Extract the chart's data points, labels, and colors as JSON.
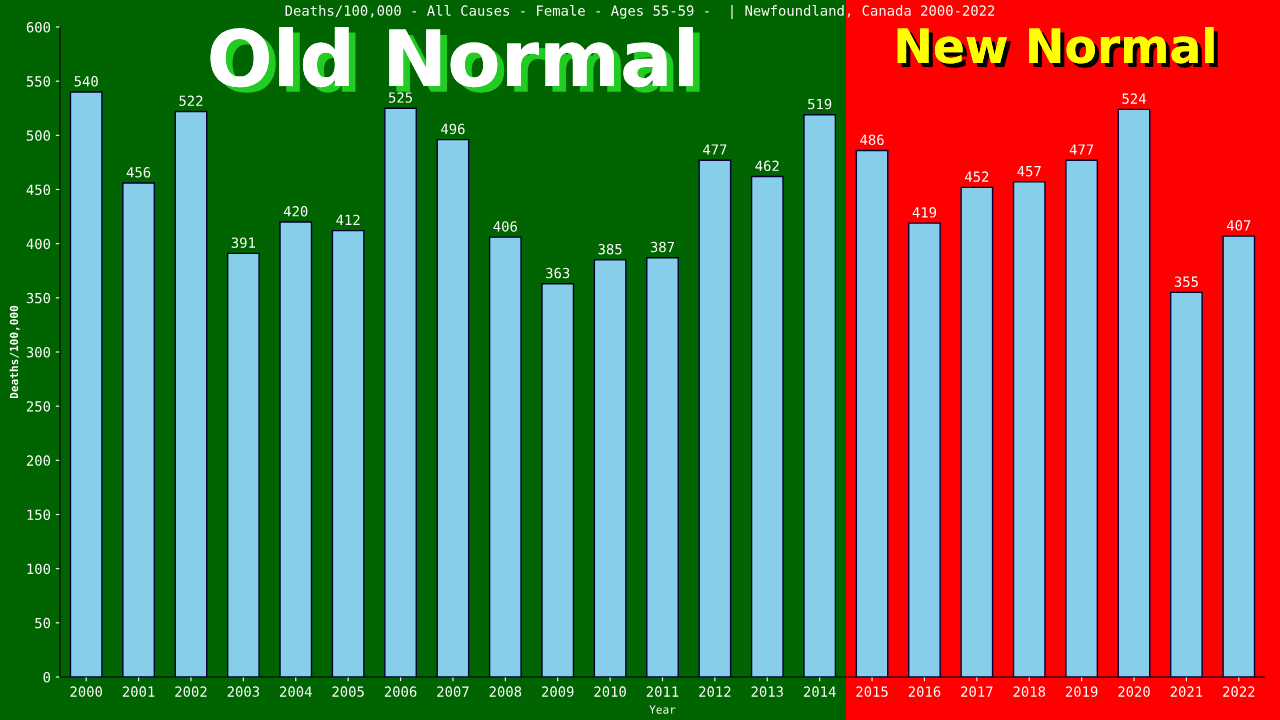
{
  "chart_data": {
    "type": "bar",
    "title": "Deaths/100,000 - All Causes - Female - Ages 55-59 -  | Newfoundland, Canada 2000-2022",
    "xlabel": "Year",
    "ylabel": "Deaths/100,000",
    "categories": [
      "2000",
      "2001",
      "2002",
      "2003",
      "2004",
      "2005",
      "2006",
      "2007",
      "2008",
      "2009",
      "2010",
      "2011",
      "2012",
      "2013",
      "2014",
      "2015",
      "2016",
      "2017",
      "2018",
      "2019",
      "2020",
      "2021",
      "2022"
    ],
    "values": [
      540,
      456,
      522,
      391,
      420,
      412,
      525,
      496,
      406,
      363,
      385,
      387,
      477,
      462,
      519,
      486,
      419,
      452,
      457,
      477,
      524,
      355,
      407
    ],
    "color": "#87ceeb",
    "data_labels": true,
    "ylim": [
      0,
      600
    ],
    "yticks": [
      0,
      50,
      100,
      150,
      200,
      250,
      300,
      350,
      400,
      450,
      500,
      550,
      600
    ],
    "bands": [
      {
        "axis": "x",
        "from": "2000",
        "to": "2014",
        "label": "Old Normal",
        "color": "#006400"
      },
      {
        "axis": "x",
        "from": "2015",
        "to": "2022",
        "label": "New Normal",
        "color": "#ff0000"
      }
    ],
    "grid": false
  }
}
